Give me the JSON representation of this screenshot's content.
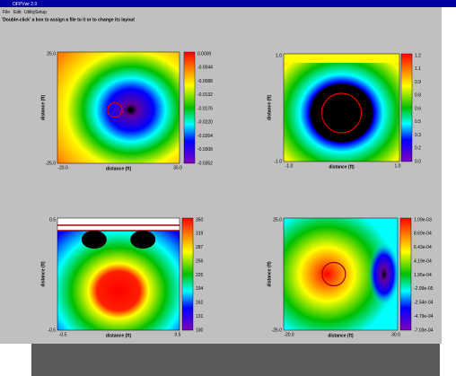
{
  "window": {
    "title": "OFPVwr 2.0",
    "menu": [
      "File",
      "Edit",
      "Utility",
      "Setup"
    ],
    "hint": "'Double-click' a box to assign a file to it or to change its layout"
  },
  "panels": [
    {
      "y_label": "distance (ft)",
      "x_label": "distance (ft)",
      "y_ticks": [
        "25.0",
        "-25.0"
      ],
      "x_ticks": [
        "-20.0",
        "30.0"
      ],
      "colorbar": [
        "0.0000",
        "-0.0044",
        "-0.0088",
        "-0.0132",
        "-0.0176",
        "-0.0220",
        "-0.0264",
        "-0.0308",
        "-0.0352"
      ]
    },
    {
      "y_label": "distance (ft)",
      "x_label": "distance (ft)",
      "y_ticks": [
        "1.0",
        "-1.0"
      ],
      "x_ticks": [
        "-1.0",
        "1.0"
      ],
      "colorbar": [
        "1.2",
        "1.1",
        "0.9",
        "0.8",
        "0.6",
        "0.5",
        "0.3",
        "0.2",
        "0.0"
      ]
    },
    {
      "y_label": "distance (ft)",
      "x_label": "distance (ft)",
      "y_ticks": [
        "0.5",
        "-0.5"
      ],
      "x_ticks": [
        "-0.5",
        "0.5"
      ],
      "colorbar": [
        "350",
        "319",
        "287",
        "256",
        "225",
        "194",
        "162",
        "131",
        "100"
      ]
    },
    {
      "y_label": "distance (ft)",
      "x_label": "distance (ft)",
      "y_ticks": [
        "25.0",
        "-25.0"
      ],
      "x_ticks": [
        "-20.0",
        "30.0"
      ],
      "colorbar": [
        "1.09e-03",
        "8.69e-04",
        "6.43e-04",
        "4.19e-04",
        "1.95e-04",
        "-2.99e-05",
        "-2.54e-04",
        "-4.79e-04",
        "-7.03e-04"
      ]
    }
  ]
}
